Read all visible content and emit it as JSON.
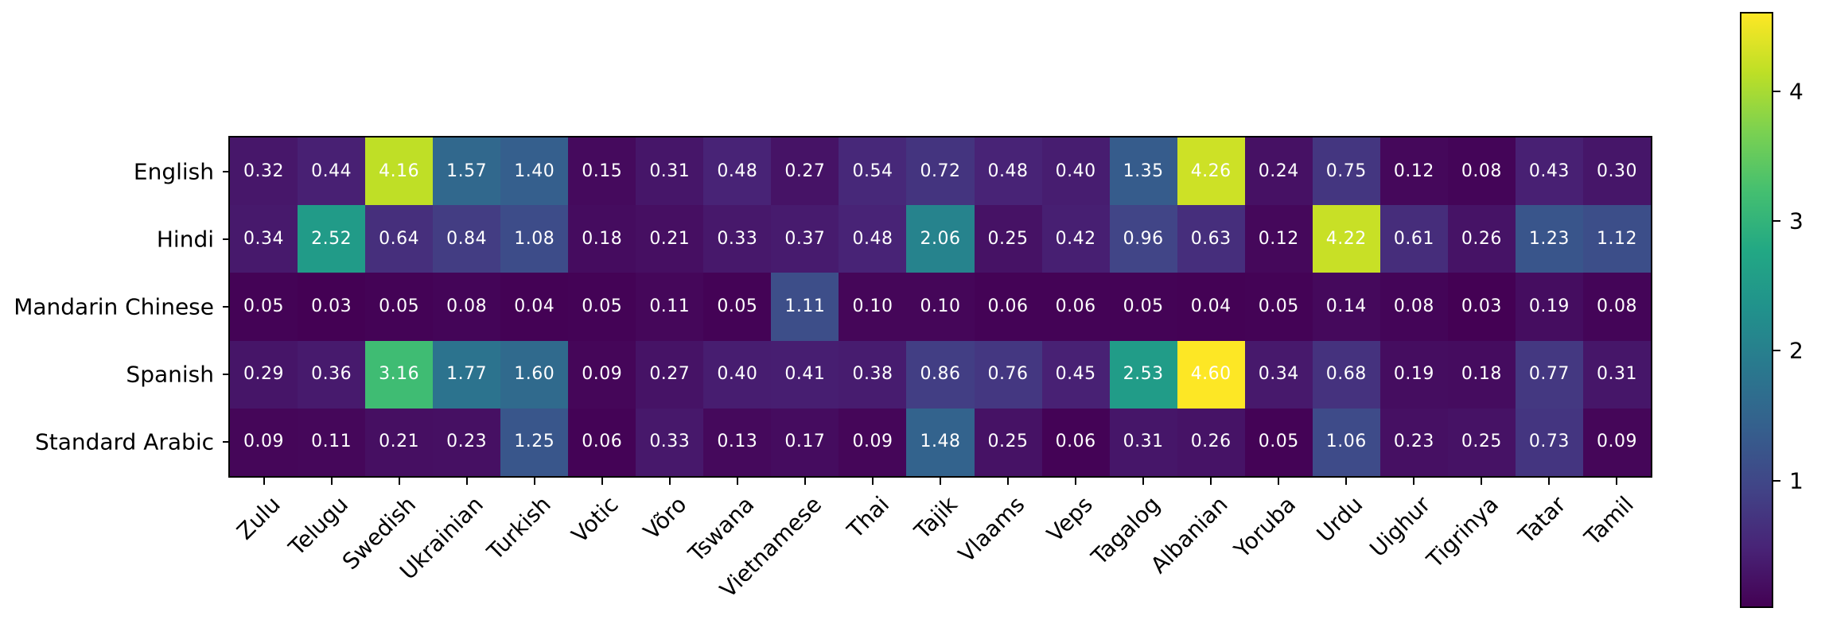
{
  "figure": {
    "background": "#ffffff",
    "border_color": "#000000",
    "annotation_text_color": "#ffffff"
  },
  "chart_data": {
    "type": "heatmap",
    "title": "",
    "xlabel": "",
    "ylabel": "",
    "rows": [
      "English",
      "Hindi",
      "Mandarin Chinese",
      "Spanish",
      "Standard Arabic"
    ],
    "columns": [
      "Zulu",
      "Telugu",
      "Swedish",
      "Ukrainian",
      "Turkish",
      "Votic",
      "Võro",
      "Tswana",
      "Vietnamese",
      "Thai",
      "Tajik",
      "Vlaams",
      "Veps",
      "Tagalog",
      "Albanian",
      "Yoruba",
      "Urdu",
      "Uighur",
      "Tigrinya",
      "Tatar",
      "Tamil"
    ],
    "values": [
      [
        0.32,
        0.44,
        4.16,
        1.57,
        1.4,
        0.15,
        0.31,
        0.48,
        0.27,
        0.54,
        0.72,
        0.48,
        0.4,
        1.35,
        4.26,
        0.24,
        0.75,
        0.12,
        0.08,
        0.43,
        0.3
      ],
      [
        0.34,
        2.52,
        0.64,
        0.84,
        1.08,
        0.18,
        0.21,
        0.33,
        0.37,
        0.48,
        2.06,
        0.25,
        0.42,
        0.96,
        0.63,
        0.12,
        4.22,
        0.61,
        0.26,
        1.23,
        1.12
      ],
      [
        0.05,
        0.03,
        0.05,
        0.08,
        0.04,
        0.05,
        0.11,
        0.05,
        1.11,
        0.1,
        0.1,
        0.06,
        0.06,
        0.05,
        0.04,
        0.05,
        0.14,
        0.08,
        0.03,
        0.19,
        0.08
      ],
      [
        0.29,
        0.36,
        3.16,
        1.77,
        1.6,
        0.09,
        0.27,
        0.4,
        0.41,
        0.38,
        0.86,
        0.76,
        0.45,
        2.53,
        4.6,
        0.34,
        0.68,
        0.19,
        0.18,
        0.77,
        0.31
      ],
      [
        0.09,
        0.11,
        0.21,
        0.23,
        1.25,
        0.06,
        0.33,
        0.13,
        0.17,
        0.09,
        1.48,
        0.25,
        0.06,
        0.31,
        0.26,
        0.05,
        1.06,
        0.23,
        0.25,
        0.73,
        0.09
      ]
    ],
    "value_decimals": 2,
    "x_tick_rotation_deg": 45,
    "grid": false,
    "colormap": {
      "name": "viridis",
      "stops": [
        "#440154",
        "#482477",
        "#414487",
        "#355f8d",
        "#2a788e",
        "#21918c",
        "#22a884",
        "#44bf70",
        "#7ad151",
        "#bddf26",
        "#fde725"
      ]
    },
    "colorbar": {
      "position": "right",
      "vmin": 0.03,
      "vmax": 4.6,
      "ticks": [
        1,
        2,
        3,
        4
      ]
    }
  }
}
